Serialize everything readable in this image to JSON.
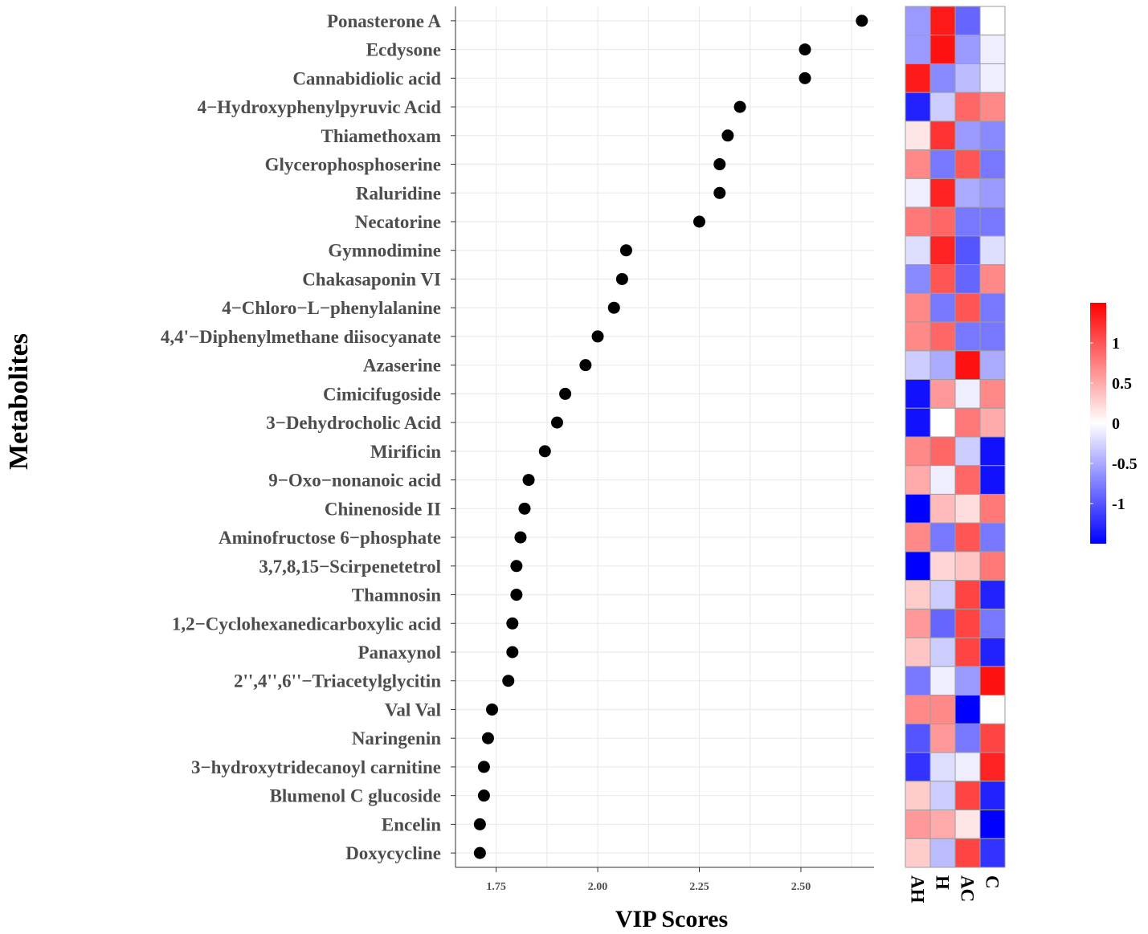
{
  "chart_data": [
    {
      "type": "scatter",
      "title": "",
      "xlabel": "VIP Scores",
      "ylabel": "Metabolites",
      "xlim": [
        1.65,
        2.68
      ],
      "xticks": [
        "1.75",
        "2.00",
        "2.25",
        "2.50"
      ],
      "grid": true,
      "categories": [
        "Ponasterone A",
        "Ecdysone",
        "Cannabidiolic acid",
        "4−Hydroxyphenylpyruvic Acid",
        "Thiamethoxam",
        "Glycerophosphoserine",
        "Raluridine",
        "Necatorine",
        "Gymnodimine",
        "Chakasaponin VI",
        "4−Chloro−L−phenylalanine",
        "4,4'−Diphenylmethane diisocyanate",
        "Azaserine",
        "Cimicifugoside",
        "3−Dehydrocholic Acid",
        "Mirificin",
        "9−Oxo−nonanoic acid",
        "Chinenoside II",
        "Aminofructose 6−phosphate",
        "3,7,8,15−Scirpenetetrol",
        "Thamnosin",
        "1,2−Cyclohexanedicarboxylic acid",
        "Panaxynol",
        "2'',4'',6''−Triacetylglycitin",
        "Val Val",
        "Naringenin",
        "3−hydroxytridecanoyl carnitine",
        "Blumenol C glucoside",
        "Encelin",
        "Doxycycline"
      ],
      "values": [
        2.65,
        2.51,
        2.51,
        2.35,
        2.32,
        2.3,
        2.3,
        2.25,
        2.07,
        2.06,
        2.04,
        2.0,
        1.97,
        1.92,
        1.9,
        1.87,
        1.83,
        1.82,
        1.81,
        1.8,
        1.8,
        1.79,
        1.79,
        1.78,
        1.74,
        1.73,
        1.72,
        1.72,
        1.71,
        1.71
      ]
    },
    {
      "type": "heatmap",
      "columns": [
        "AH",
        "H",
        "AC",
        "C"
      ],
      "rows_ref": "same as scatter categories",
      "values": [
        [
          -0.6,
          1.35,
          -0.9,
          0.0
        ],
        [
          -0.6,
          1.4,
          -0.6,
          -0.1
        ],
        [
          1.35,
          -0.7,
          -0.4,
          -0.1
        ],
        [
          -1.3,
          -0.3,
          0.9,
          0.7
        ],
        [
          0.15,
          1.2,
          -0.6,
          -0.7
        ],
        [
          0.7,
          -0.8,
          1.0,
          -0.8
        ],
        [
          -0.1,
          1.3,
          -0.5,
          -0.6
        ],
        [
          0.8,
          0.9,
          -0.8,
          -0.8
        ],
        [
          -0.2,
          1.3,
          -1.0,
          -0.2
        ],
        [
          -0.7,
          1.0,
          -0.9,
          0.7
        ],
        [
          0.7,
          -0.8,
          1.0,
          -0.8
        ],
        [
          0.7,
          0.9,
          -0.8,
          -0.8
        ],
        [
          -0.3,
          -0.5,
          1.4,
          -0.5
        ],
        [
          -1.4,
          0.6,
          -0.1,
          0.7
        ],
        [
          -1.4,
          0.0,
          0.8,
          0.5
        ],
        [
          0.7,
          0.9,
          -0.3,
          -1.4
        ],
        [
          0.5,
          -0.1,
          0.9,
          -1.4
        ],
        [
          -1.5,
          0.4,
          0.2,
          0.8
        ],
        [
          0.7,
          -0.8,
          1.0,
          -0.8
        ],
        [
          -1.5,
          0.25,
          0.35,
          0.8
        ],
        [
          0.3,
          -0.3,
          1.1,
          -1.3
        ],
        [
          0.6,
          -0.9,
          1.1,
          -0.8
        ],
        [
          0.35,
          -0.3,
          1.1,
          -1.3
        ],
        [
          -0.8,
          -0.1,
          -0.6,
          1.4
        ],
        [
          0.7,
          0.7,
          -1.5,
          0.0
        ],
        [
          -1.0,
          0.6,
          -0.8,
          1.1
        ],
        [
          -1.2,
          -0.2,
          -0.1,
          1.3
        ],
        [
          0.3,
          -0.3,
          1.1,
          -1.3
        ],
        [
          0.6,
          0.5,
          0.15,
          -1.5
        ],
        [
          0.3,
          -0.4,
          1.1,
          -1.2
        ]
      ],
      "colorbar": {
        "ticks": [
          "1",
          "0.5",
          "0",
          "-0.5",
          "-1"
        ],
        "tick_values": [
          1,
          0.5,
          0,
          -0.5,
          -1
        ],
        "range": [
          -1.5,
          1.5
        ],
        "low_color": "#0000ff",
        "mid_color": "#ffffff",
        "high_color": "#ff0000"
      }
    }
  ]
}
